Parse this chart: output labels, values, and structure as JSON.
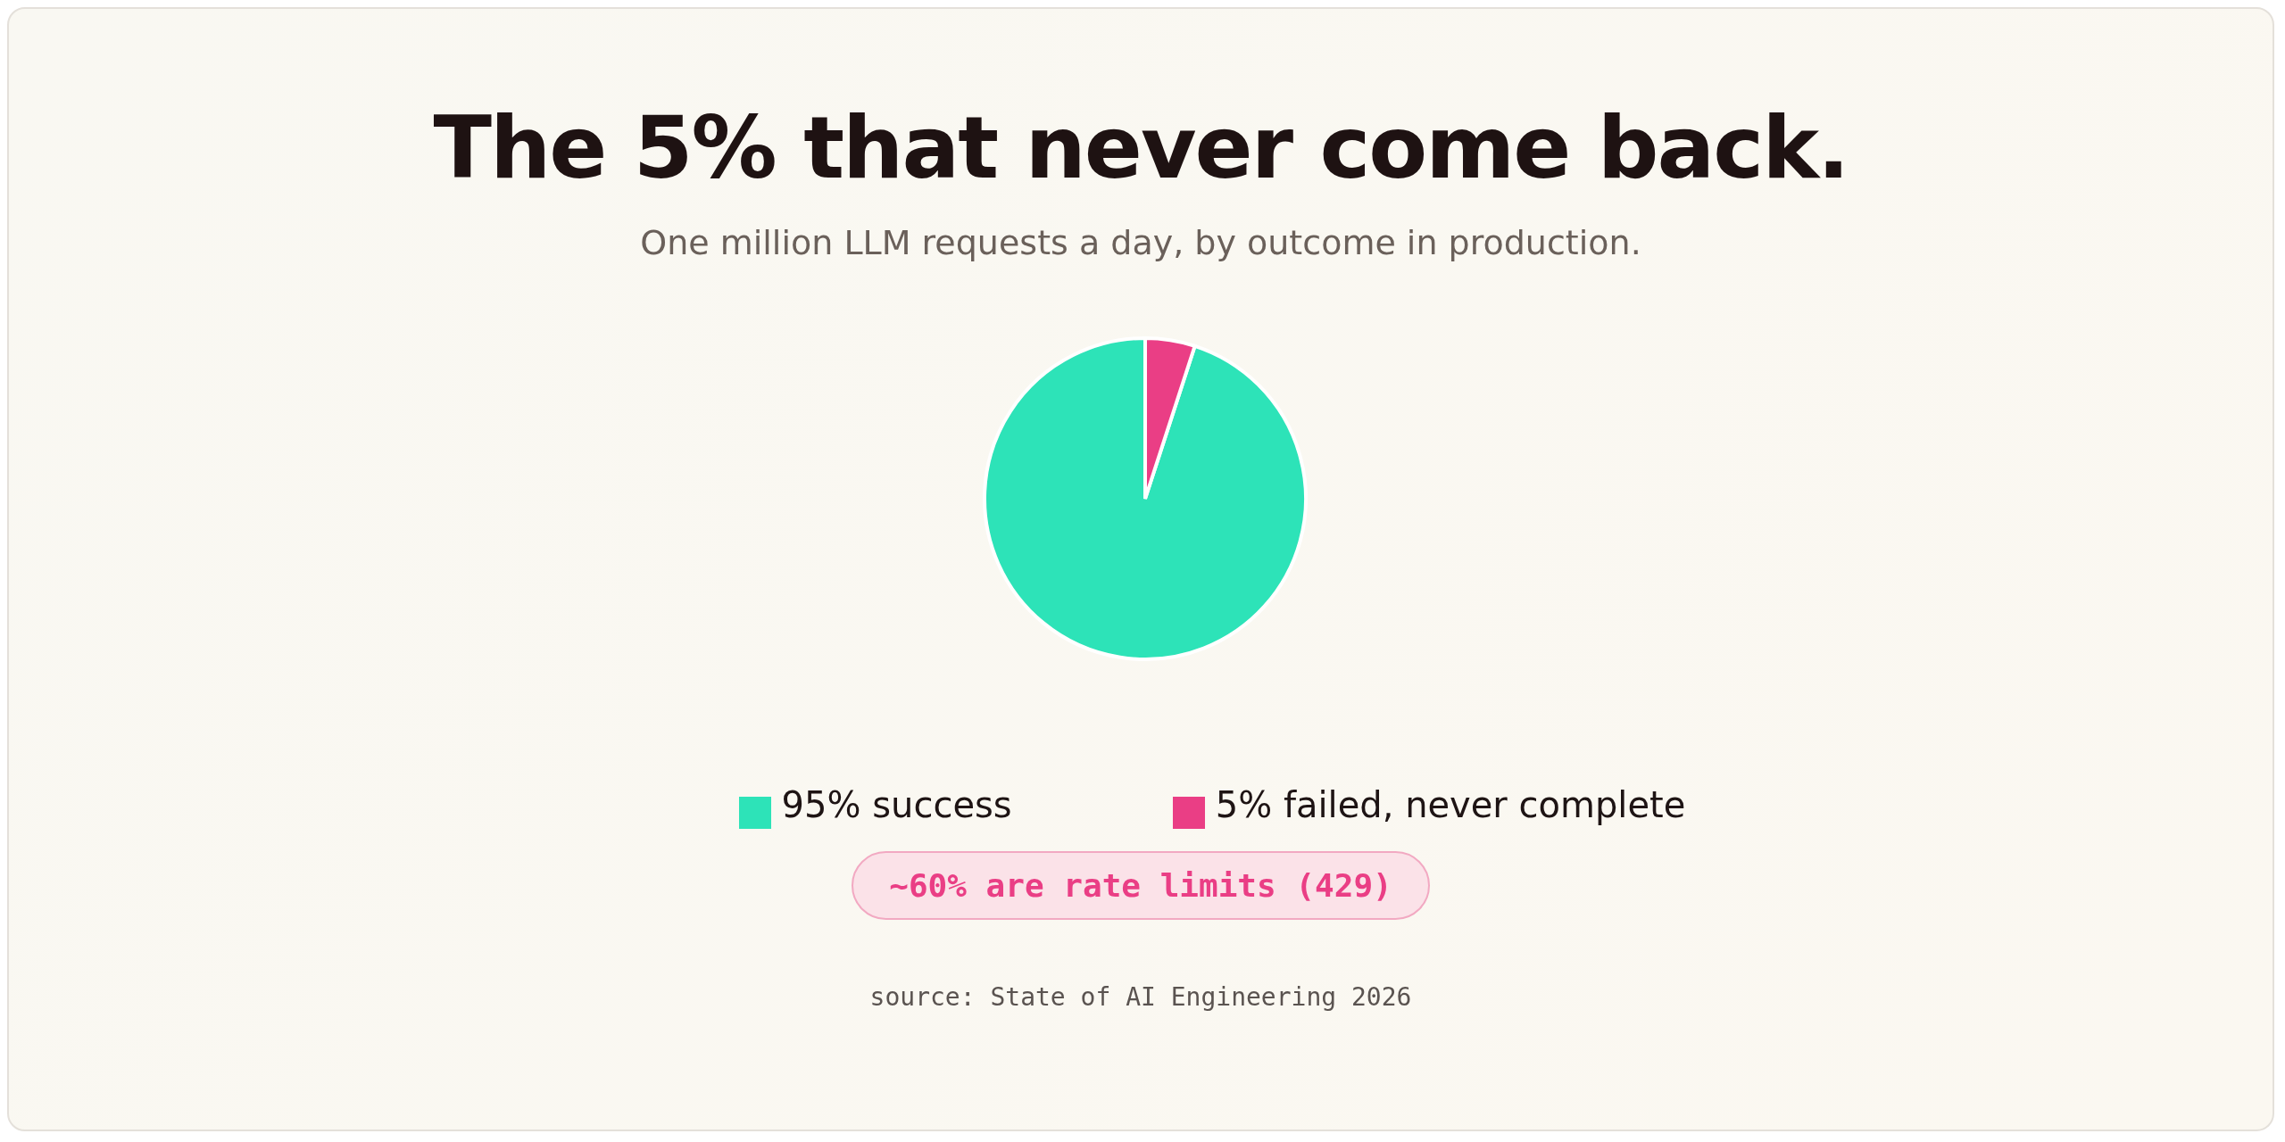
{
  "chart_data": {
    "type": "pie",
    "title": "The 5% that never come back.",
    "subtitle": "One million LLM requests a day, by outcome in production.",
    "categories": [
      "success",
      "failed, never complete"
    ],
    "values": [
      95,
      5
    ],
    "value_labels": [
      "95%",
      "5%"
    ],
    "colors": [
      "#2de3b8",
      "#ea3e85"
    ],
    "legend": "bottom",
    "annotations": [
      "~60% are rate limits (429)",
      "source: State of AI Engineering 2026"
    ]
  }
}
